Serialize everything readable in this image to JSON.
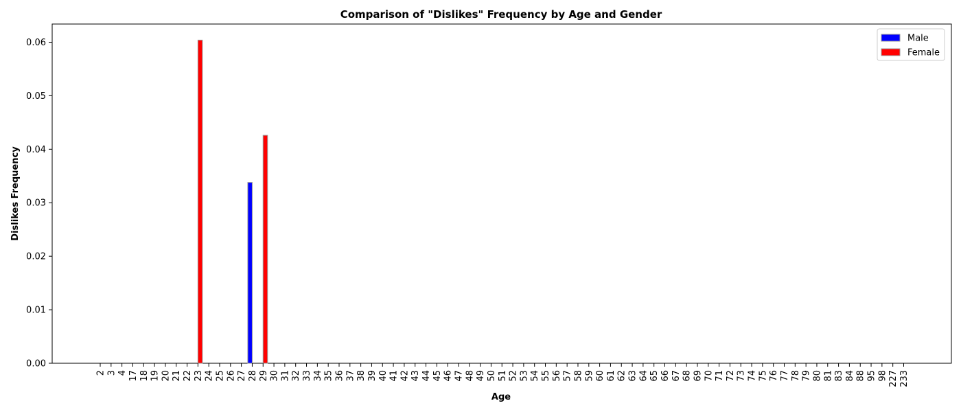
{
  "chart_data": {
    "type": "bar",
    "title": "Comparison of \"Dislikes\" Frequency by Age and Gender",
    "xlabel": "Age",
    "ylabel": "Dislikes Frequency",
    "categories": [
      "2",
      "3",
      "4",
      "17",
      "18",
      "19",
      "20",
      "21",
      "22",
      "23",
      "24",
      "25",
      "26",
      "27",
      "28",
      "29",
      "30",
      "31",
      "32",
      "33",
      "34",
      "35",
      "36",
      "37",
      "38",
      "39",
      "40",
      "41",
      "42",
      "43",
      "44",
      "45",
      "46",
      "47",
      "48",
      "49",
      "50",
      "51",
      "52",
      "53",
      "54",
      "55",
      "56",
      "57",
      "58",
      "59",
      "60",
      "61",
      "62",
      "63",
      "64",
      "65",
      "66",
      "67",
      "68",
      "69",
      "70",
      "71",
      "72",
      "73",
      "74",
      "75",
      "76",
      "77",
      "78",
      "79",
      "80",
      "81",
      "83",
      "84",
      "88",
      "95",
      "98",
      "227",
      "233"
    ],
    "series": [
      {
        "name": "Male",
        "color": "#0000ff",
        "values": {
          "28": 0.0338
        }
      },
      {
        "name": "Female",
        "color": "#ff0000",
        "values": {
          "23": 0.0604,
          "29": 0.0426
        }
      }
    ],
    "ylim": [
      0,
      0.0634
    ],
    "yticks": [
      "0.00",
      "0.01",
      "0.02",
      "0.03",
      "0.04",
      "0.05",
      "0.06"
    ],
    "legend": {
      "position": "top-right",
      "entries": [
        "Male",
        "Female"
      ]
    },
    "grid": false
  }
}
